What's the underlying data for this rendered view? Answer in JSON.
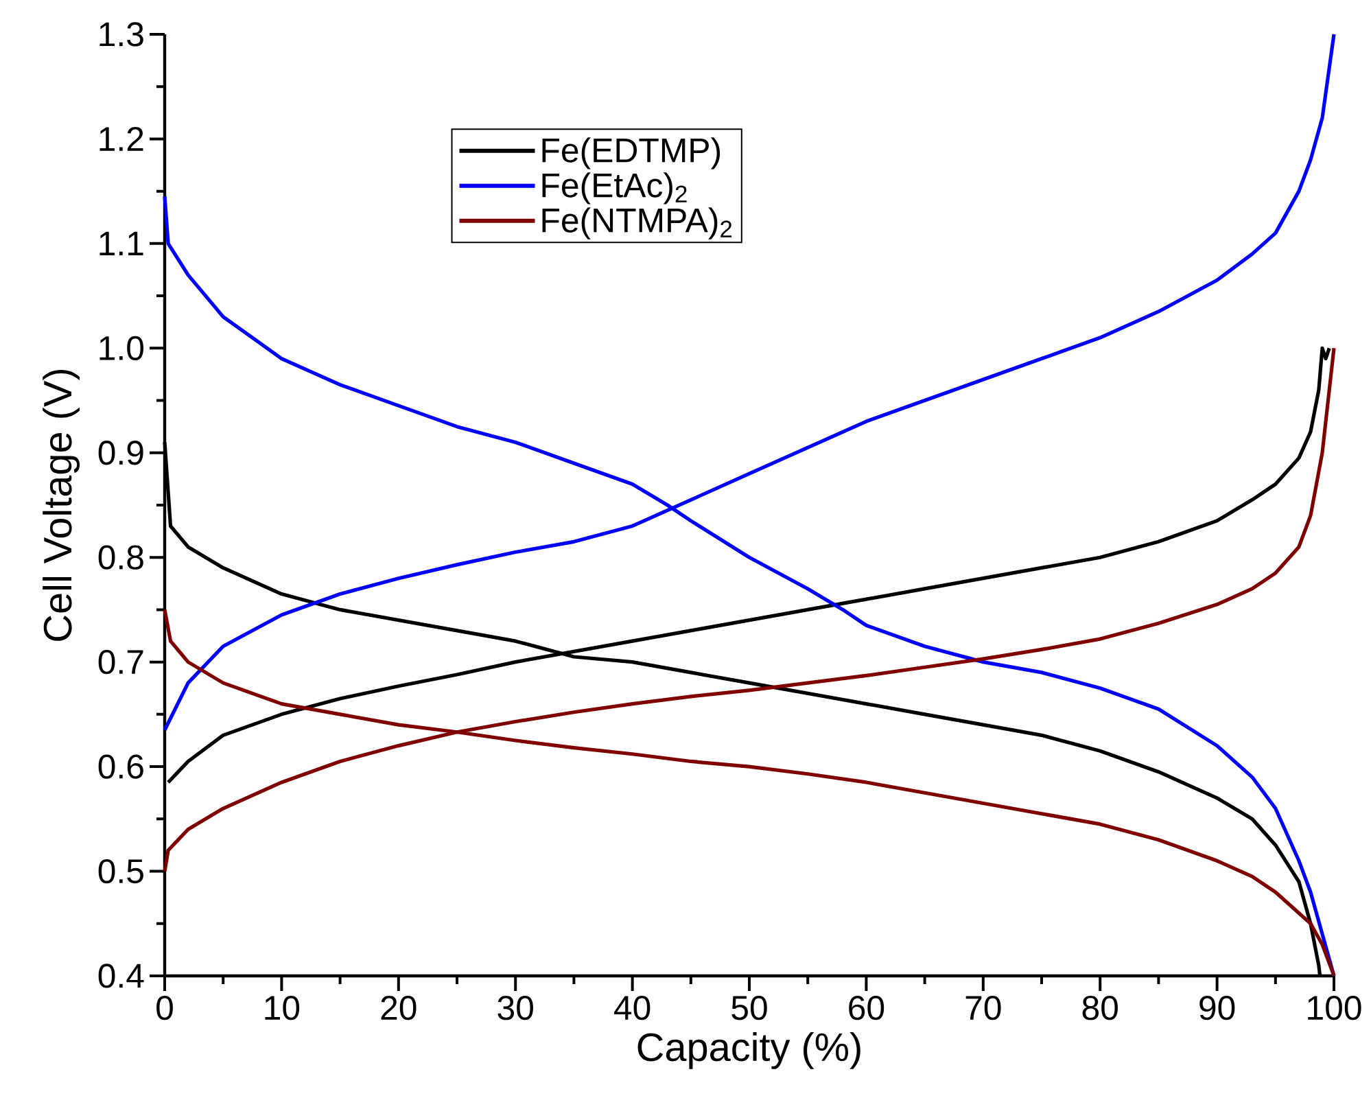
{
  "chart_data": {
    "type": "line",
    "xlabel": "Capacity (%)",
    "ylabel": "Cell Voltage (V)",
    "xlim": [
      0,
      100
    ],
    "ylim": [
      0.4,
      1.3
    ],
    "xticks": [
      0,
      10,
      20,
      30,
      40,
      50,
      60,
      70,
      80,
      90,
      100
    ],
    "yticks": [
      {
        "value": 0.4,
        "label": "0.4"
      },
      {
        "value": 0.5,
        "label": "0.5"
      },
      {
        "value": 0.6,
        "label": "0.6"
      },
      {
        "value": 0.7,
        "label": "0.7"
      },
      {
        "value": 0.8,
        "label": "0.8"
      },
      {
        "value": 0.9,
        "label": "0.9"
      },
      {
        "value": 1.0,
        "label": "1.0"
      },
      {
        "value": 1.1,
        "label": "1.1"
      },
      {
        "value": 1.2,
        "label": "1.2"
      },
      {
        "value": 1.3,
        "label": "1.3"
      }
    ],
    "legend": "top left",
    "grid": false,
    "series": [
      {
        "name": "Fe(EDTMP)",
        "color": "#000000",
        "x": [
          0.3,
          2,
          5,
          10,
          15,
          20,
          25,
          30,
          35,
          40,
          45,
          50,
          55,
          60,
          65,
          70,
          75,
          80,
          85,
          90,
          93,
          95,
          97,
          98,
          98.7,
          99,
          99.3,
          99.6
        ],
        "values": [
          0.585,
          0.605,
          0.63,
          0.65,
          0.665,
          0.677,
          0.688,
          0.7,
          0.71,
          0.72,
          0.73,
          0.74,
          0.75,
          0.76,
          0.77,
          0.78,
          0.79,
          0.8,
          0.815,
          0.835,
          0.855,
          0.87,
          0.895,
          0.92,
          0.96,
          1.0,
          0.99,
          1.0
        ]
      },
      {
        "color": "#000000",
        "x": [
          0,
          0.5,
          2,
          5,
          10,
          15,
          20,
          25,
          30,
          35,
          40,
          45,
          50,
          55,
          60,
          65,
          70,
          75,
          80,
          85,
          90,
          93,
          95,
          97,
          98,
          98.7,
          98.8
        ],
        "values": [
          0.91,
          0.83,
          0.81,
          0.79,
          0.765,
          0.75,
          0.74,
          0.73,
          0.72,
          0.705,
          0.7,
          0.69,
          0.68,
          0.67,
          0.66,
          0.65,
          0.64,
          0.63,
          0.615,
          0.595,
          0.57,
          0.55,
          0.525,
          0.49,
          0.45,
          0.41,
          0.4
        ]
      },
      {
        "name": "Fe(EtAc)$_{2}$",
        "color": "#0000ff",
        "x": [
          0,
          2,
          5,
          10,
          15,
          20,
          25,
          30,
          35,
          40,
          45,
          50,
          55,
          60,
          65,
          70,
          75,
          80,
          85,
          90,
          93,
          95,
          97,
          98,
          99,
          99.5,
          100
        ],
        "values": [
          0.635,
          0.68,
          0.715,
          0.745,
          0.765,
          0.78,
          0.793,
          0.805,
          0.815,
          0.83,
          0.855,
          0.88,
          0.905,
          0.93,
          0.95,
          0.97,
          0.99,
          1.01,
          1.035,
          1.065,
          1.09,
          1.11,
          1.15,
          1.18,
          1.22,
          1.26,
          1.3
        ]
      },
      {
        "color": "#0000ff",
        "x": [
          0,
          0.3,
          2,
          5,
          10,
          15,
          20,
          25,
          30,
          35,
          40,
          43,
          45,
          50,
          55,
          58,
          60,
          65,
          70,
          75,
          80,
          85,
          90,
          93,
          95,
          97,
          98,
          99,
          100
        ],
        "values": [
          1.145,
          1.1,
          1.07,
          1.03,
          0.99,
          0.965,
          0.945,
          0.925,
          0.91,
          0.89,
          0.87,
          0.85,
          0.835,
          0.8,
          0.77,
          0.75,
          0.735,
          0.715,
          0.7,
          0.69,
          0.675,
          0.655,
          0.62,
          0.59,
          0.56,
          0.51,
          0.48,
          0.44,
          0.4
        ]
      },
      {
        "name": "Fe(NTMPA)$_{2}$",
        "color": "#800000",
        "x": [
          0,
          0.3,
          2,
          5,
          10,
          15,
          20,
          25,
          30,
          35,
          40,
          45,
          50,
          55,
          60,
          65,
          70,
          75,
          80,
          85,
          90,
          93,
          95,
          97,
          98,
          99,
          99.5,
          100
        ],
        "values": [
          0.5,
          0.52,
          0.54,
          0.56,
          0.585,
          0.605,
          0.62,
          0.633,
          0.643,
          0.652,
          0.66,
          0.667,
          0.673,
          0.68,
          0.687,
          0.695,
          0.703,
          0.712,
          0.722,
          0.737,
          0.755,
          0.77,
          0.785,
          0.81,
          0.84,
          0.9,
          0.95,
          1.0
        ]
      },
      {
        "color": "#800000",
        "x": [
          0,
          0.5,
          2,
          5,
          10,
          15,
          20,
          25,
          30,
          35,
          40,
          45,
          50,
          55,
          60,
          65,
          70,
          75,
          80,
          85,
          90,
          93,
          95,
          97,
          98,
          99,
          100
        ],
        "values": [
          0.75,
          0.72,
          0.7,
          0.68,
          0.66,
          0.65,
          0.64,
          0.633,
          0.625,
          0.618,
          0.612,
          0.605,
          0.6,
          0.593,
          0.585,
          0.575,
          0.565,
          0.555,
          0.545,
          0.53,
          0.51,
          0.495,
          0.48,
          0.46,
          0.45,
          0.43,
          0.4
        ]
      }
    ]
  }
}
